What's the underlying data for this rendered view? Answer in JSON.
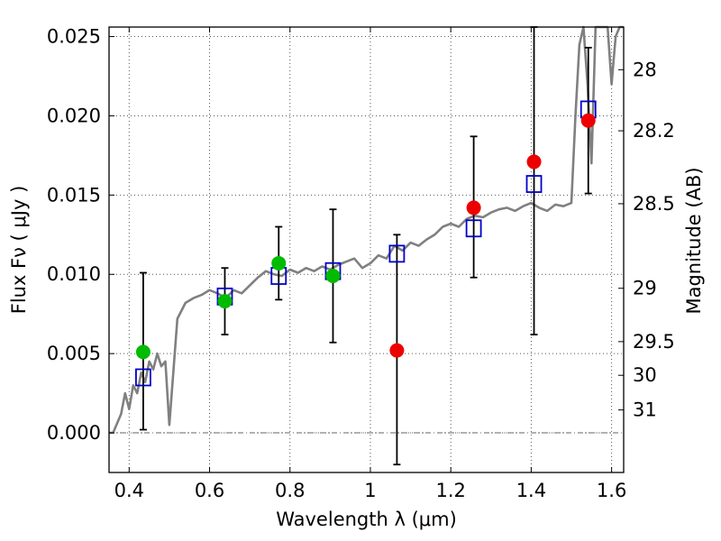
{
  "chart_data": {
    "type": "scatter",
    "xlabel": "Wavelength  λ (μm)",
    "ylabel_left": "Flux  Fν  ( μJy )",
    "ylabel_right": "Magnitude (AB)",
    "xlim": [
      0.35,
      1.63
    ],
    "ylim": [
      -0.0025,
      0.0256
    ],
    "grid": true,
    "x_ticks": [
      0.4,
      0.6,
      0.8,
      1.0,
      1.2,
      1.4,
      1.6
    ],
    "x_tick_labels": [
      "0.4",
      "0.6",
      "0.8",
      "1",
      "1.2",
      "1.4",
      "1.6"
    ],
    "y_ticks": [
      0.0,
      0.005,
      0.01,
      0.015,
      0.02,
      0.025
    ],
    "y_tick_labels": [
      "0.000",
      "0.005",
      "0.010",
      "0.015",
      "0.020",
      "0.025"
    ],
    "right_ticks": [
      {
        "label": "28",
        "mag": 28.0
      },
      {
        "label": "28.2",
        "mag": 28.2
      },
      {
        "label": "28.5",
        "mag": 28.5
      },
      {
        "label": "29",
        "mag": 29.0
      },
      {
        "label": "29.5",
        "mag": 29.5
      },
      {
        "label": "30",
        "mag": 30.0
      },
      {
        "label": "31",
        "mag": 31.0
      }
    ],
    "zero_line": 0.0,
    "colors": {
      "model": "#808080",
      "green_points": "#00bb00",
      "red_points": "#ee0000",
      "squares": "#0000cc",
      "errorbars": "#000000",
      "grid": "#555555"
    },
    "model_spectrum": {
      "x": [
        0.35,
        0.36,
        0.38,
        0.39,
        0.4,
        0.41,
        0.42,
        0.43,
        0.44,
        0.45,
        0.46,
        0.47,
        0.48,
        0.49,
        0.5,
        0.52,
        0.54,
        0.56,
        0.58,
        0.6,
        0.62,
        0.64,
        0.66,
        0.68,
        0.7,
        0.72,
        0.74,
        0.76,
        0.78,
        0.8,
        0.82,
        0.84,
        0.86,
        0.88,
        0.9,
        0.92,
        0.94,
        0.96,
        0.98,
        1.0,
        1.02,
        1.04,
        1.06,
        1.08,
        1.1,
        1.12,
        1.14,
        1.16,
        1.18,
        1.2,
        1.22,
        1.24,
        1.26,
        1.28,
        1.3,
        1.32,
        1.34,
        1.36,
        1.38,
        1.4,
        1.42,
        1.44,
        1.46,
        1.48,
        1.5,
        1.51,
        1.52,
        1.53,
        1.54,
        1.55,
        1.56,
        1.57,
        1.58,
        1.59,
        1.6,
        1.61,
        1.62,
        1.63
      ],
      "y": [
        0.0,
        0.0,
        0.0012,
        0.0025,
        0.0015,
        0.003,
        0.0025,
        0.0038,
        0.0032,
        0.0045,
        0.004,
        0.005,
        0.0042,
        0.0045,
        0.0005,
        0.0072,
        0.0082,
        0.0085,
        0.0087,
        0.009,
        0.0088,
        0.0085,
        0.009,
        0.0088,
        0.0093,
        0.0098,
        0.0102,
        0.01,
        0.0099,
        0.0103,
        0.0101,
        0.0104,
        0.0102,
        0.0105,
        0.0103,
        0.0106,
        0.0108,
        0.011,
        0.0104,
        0.0107,
        0.0112,
        0.011,
        0.0118,
        0.0115,
        0.012,
        0.0118,
        0.0122,
        0.0125,
        0.013,
        0.0132,
        0.013,
        0.0135,
        0.0137,
        0.0136,
        0.0139,
        0.0141,
        0.0142,
        0.014,
        0.0143,
        0.0145,
        0.0142,
        0.014,
        0.0144,
        0.0143,
        0.0145,
        0.02,
        0.0245,
        0.03,
        0.022,
        0.017,
        0.026,
        0.03,
        0.032,
        0.026,
        0.022,
        0.025,
        0.027,
        0.026
      ]
    },
    "green_points": {
      "x": [
        0.435,
        0.638,
        0.772,
        0.907
      ],
      "y": [
        0.0051,
        0.0083,
        0.0107,
        0.0099
      ]
    },
    "red_points": {
      "x": [
        1.066,
        1.257,
        1.407,
        1.542
      ],
      "y": [
        0.0052,
        0.0142,
        0.0171,
        0.0197
      ]
    },
    "squares_with_errors": {
      "x": [
        0.435,
        0.638,
        0.772,
        0.907,
        1.066,
        1.257,
        1.407,
        1.542
      ],
      "y": [
        0.0035,
        0.0086,
        0.0099,
        0.0102,
        0.0113,
        0.0129,
        0.0157,
        0.0204
      ],
      "err_low": [
        0.0002,
        0.0062,
        0.0084,
        0.0057,
        -0.002,
        0.0098,
        0.0062,
        0.0151
      ],
      "err_high": [
        0.0101,
        0.0104,
        0.013,
        0.0141,
        0.0125,
        0.0187,
        0.0256,
        0.0243
      ]
    }
  }
}
